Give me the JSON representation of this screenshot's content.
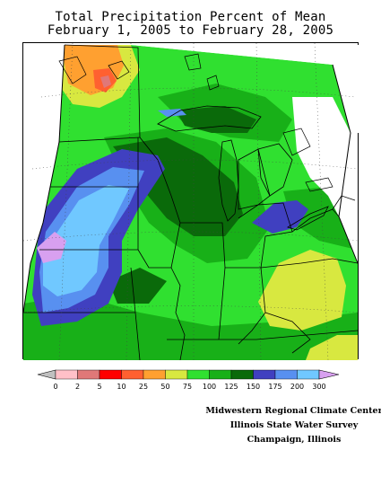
{
  "title": {
    "line1": "Total Precipitation Percent of Mean",
    "line2": "February 1, 2005 to February 28, 2005"
  },
  "legend": {
    "bins": [
      {
        "label": "0",
        "color": "#c0c0c0"
      },
      {
        "label": "2",
        "color": "#ffc0c8"
      },
      {
        "label": "5",
        "color": "#e07878"
      },
      {
        "label": "10",
        "color": "#ff0000"
      },
      {
        "label": "25",
        "color": "#ff6030"
      },
      {
        "label": "50",
        "color": "#ffa030"
      },
      {
        "label": "75",
        "color": "#d8e840"
      },
      {
        "label": "100",
        "color": "#30e030"
      },
      {
        "label": "125",
        "color": "#18b018"
      },
      {
        "label": "150",
        "color": "#0a6a0a"
      },
      {
        "label": "175",
        "color": "#4040c0"
      },
      {
        "label": "200",
        "color": "#5890f0"
      },
      {
        "label": "300",
        "color": "#70c8ff"
      }
    ],
    "over_color": "#d8a0f0"
  },
  "credits": {
    "line1": "Midwestern Regional Climate Center",
    "line2": "Illinois State Water Survey",
    "line3": "Champaign, Illinois"
  },
  "map_colors": {
    "base": "#30e030",
    "mid": "#18b018",
    "dark": "#0a6a0a",
    "navy": "#4040c0",
    "blue": "#5890f0",
    "cyan": "#70c8ff",
    "lavender": "#d8a0f0",
    "yellow": "#d8e840",
    "orange": "#ffa030",
    "redorange": "#ff6030",
    "pink": "#e07878"
  }
}
